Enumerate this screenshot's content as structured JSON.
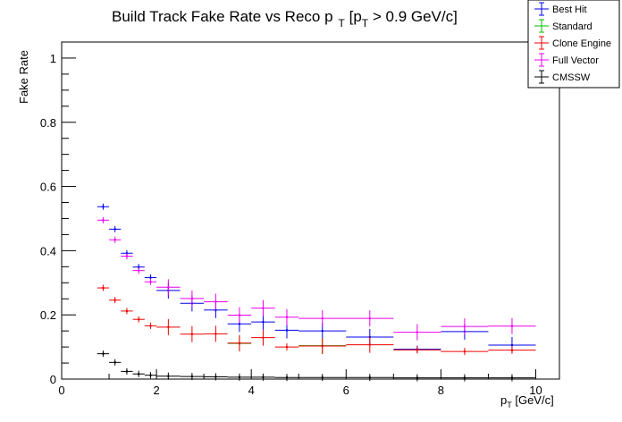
{
  "chart_data": {
    "type": "scatter",
    "title": "Build Track Fake Rate vs Reco p",
    "title_sub1": "T",
    "title_mid": " [p",
    "title_sub2": "T",
    "title_end": " > 0.9 GeV/c]",
    "xlabel_main": "p",
    "xlabel_sub": "T",
    "xlabel_unit": " [GeV/c]",
    "ylabel": "Fake Rate",
    "xlim": [
      0,
      10.5
    ],
    "ylim": [
      0,
      1.05
    ],
    "x_ticks": [
      "0",
      "2",
      "4",
      "6",
      "8",
      "10"
    ],
    "y_ticks": [
      "0",
      "0.2",
      "0.4",
      "0.6",
      "0.8",
      "1"
    ],
    "legend_position": "top-right",
    "series": [
      {
        "name": "Best Hit",
        "color": "#0000ee",
        "points": [
          {
            "x0": 0.75,
            "x1": 1.0,
            "y": 0.537
          },
          {
            "x0": 1.0,
            "x1": 1.25,
            "y": 0.467
          },
          {
            "x0": 1.25,
            "x1": 1.5,
            "y": 0.392
          },
          {
            "x0": 1.5,
            "x1": 1.75,
            "y": 0.349
          },
          {
            "x0": 1.75,
            "x1": 2.0,
            "y": 0.316
          },
          {
            "x0": 2.0,
            "x1": 2.5,
            "y": 0.276
          },
          {
            "x0": 2.5,
            "x1": 3.0,
            "y": 0.236
          },
          {
            "x0": 3.0,
            "x1": 3.5,
            "y": 0.215
          },
          {
            "x0": 3.5,
            "x1": 4.0,
            "y": 0.172
          },
          {
            "x0": 4.0,
            "x1": 4.5,
            "y": 0.178
          },
          {
            "x0": 4.5,
            "x1": 5.0,
            "y": 0.152
          },
          {
            "x0": 5.0,
            "x1": 6.0,
            "y": 0.15
          },
          {
            "x0": 6.0,
            "x1": 7.0,
            "y": 0.131
          },
          {
            "x0": 7.0,
            "x1": 8.0,
            "y": 0.093
          },
          {
            "x0": 8.0,
            "x1": 9.0,
            "y": 0.148
          },
          {
            "x0": 9.0,
            "x1": 10.0,
            "y": 0.106
          }
        ]
      },
      {
        "name": "Standard",
        "color": "#00bb00",
        "points": [
          {
            "x0": 3.5,
            "x1": 4.0,
            "y": 0.111
          },
          {
            "x0": 5.0,
            "x1": 6.0,
            "y": 0.104
          }
        ]
      },
      {
        "name": "Clone Engine",
        "color": "#ee0000",
        "points": [
          {
            "x0": 0.75,
            "x1": 1.0,
            "y": 0.284
          },
          {
            "x0": 1.0,
            "x1": 1.25,
            "y": 0.246
          },
          {
            "x0": 1.25,
            "x1": 1.5,
            "y": 0.212
          },
          {
            "x0": 1.5,
            "x1": 1.75,
            "y": 0.186
          },
          {
            "x0": 1.75,
            "x1": 2.0,
            "y": 0.166
          },
          {
            "x0": 2.0,
            "x1": 2.5,
            "y": 0.162
          },
          {
            "x0": 2.5,
            "x1": 3.0,
            "y": 0.14
          },
          {
            "x0": 3.0,
            "x1": 3.5,
            "y": 0.141
          },
          {
            "x0": 3.5,
            "x1": 4.0,
            "y": 0.112
          },
          {
            "x0": 4.0,
            "x1": 4.5,
            "y": 0.129
          },
          {
            "x0": 4.5,
            "x1": 5.0,
            "y": 0.1
          },
          {
            "x0": 5.0,
            "x1": 6.0,
            "y": 0.103
          },
          {
            "x0": 6.0,
            "x1": 7.0,
            "y": 0.107
          },
          {
            "x0": 7.0,
            "x1": 8.0,
            "y": 0.091
          },
          {
            "x0": 8.0,
            "x1": 9.0,
            "y": 0.086
          },
          {
            "x0": 9.0,
            "x1": 10.0,
            "y": 0.09
          }
        ]
      },
      {
        "name": "Full Vector",
        "color": "#ee00ee",
        "points": [
          {
            "x0": 0.75,
            "x1": 1.0,
            "y": 0.495
          },
          {
            "x0": 1.0,
            "x1": 1.25,
            "y": 0.434
          },
          {
            "x0": 1.25,
            "x1": 1.5,
            "y": 0.383
          },
          {
            "x0": 1.5,
            "x1": 1.75,
            "y": 0.338
          },
          {
            "x0": 1.75,
            "x1": 2.0,
            "y": 0.303
          },
          {
            "x0": 2.0,
            "x1": 2.5,
            "y": 0.286
          },
          {
            "x0": 2.5,
            "x1": 3.0,
            "y": 0.251
          },
          {
            "x0": 3.0,
            "x1": 3.5,
            "y": 0.241
          },
          {
            "x0": 3.5,
            "x1": 4.0,
            "y": 0.199
          },
          {
            "x0": 4.0,
            "x1": 4.5,
            "y": 0.221
          },
          {
            "x0": 4.5,
            "x1": 5.0,
            "y": 0.193
          },
          {
            "x0": 5.0,
            "x1": 6.0,
            "y": 0.189
          },
          {
            "x0": 6.0,
            "x1": 7.0,
            "y": 0.189
          },
          {
            "x0": 7.0,
            "x1": 8.0,
            "y": 0.146
          },
          {
            "x0": 8.0,
            "x1": 9.0,
            "y": 0.164
          },
          {
            "x0": 9.0,
            "x1": 10.0,
            "y": 0.165
          }
        ]
      },
      {
        "name": "CMSSW",
        "color": "#000000",
        "points": [
          {
            "x0": 0.75,
            "x1": 1.0,
            "y": 0.079
          },
          {
            "x0": 1.0,
            "x1": 1.25,
            "y": 0.052
          },
          {
            "x0": 1.25,
            "x1": 1.5,
            "y": 0.024
          },
          {
            "x0": 1.5,
            "x1": 1.75,
            "y": 0.016
          },
          {
            "x0": 1.75,
            "x1": 2.0,
            "y": 0.012
          },
          {
            "x0": 2.0,
            "x1": 2.5,
            "y": 0.009
          },
          {
            "x0": 2.5,
            "x1": 3.0,
            "y": 0.008
          },
          {
            "x0": 3.0,
            "x1": 3.5,
            "y": 0.007
          },
          {
            "x0": 3.5,
            "x1": 4.0,
            "y": 0.006
          },
          {
            "x0": 4.0,
            "x1": 4.5,
            "y": 0.006
          },
          {
            "x0": 4.5,
            "x1": 5.0,
            "y": 0.005
          },
          {
            "x0": 5.0,
            "x1": 6.0,
            "y": 0.005
          },
          {
            "x0": 6.0,
            "x1": 7.0,
            "y": 0.005
          },
          {
            "x0": 7.0,
            "x1": 8.0,
            "y": 0.004
          },
          {
            "x0": 8.0,
            "x1": 9.0,
            "y": 0.004
          },
          {
            "x0": 9.0,
            "x1": 10.0,
            "y": 0.004
          }
        ]
      }
    ]
  }
}
